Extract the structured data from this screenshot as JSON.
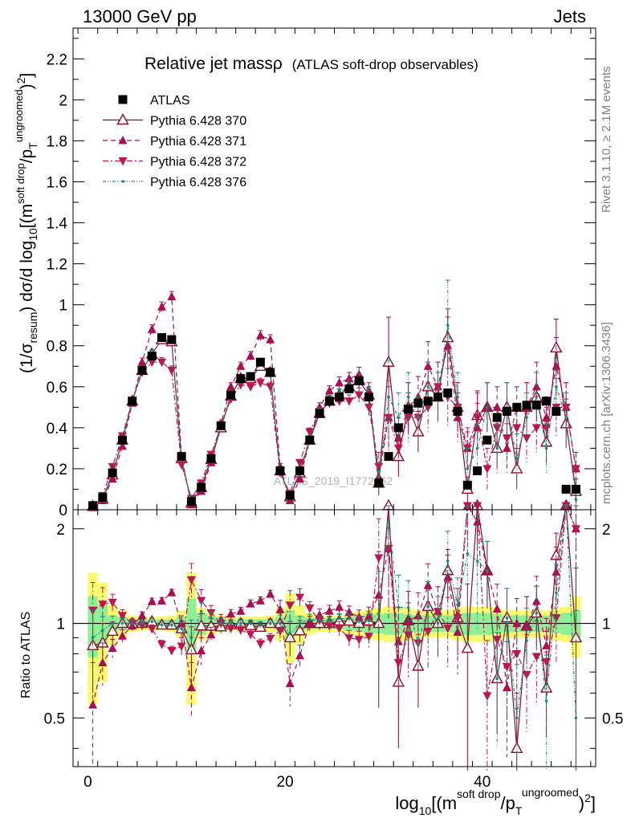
{
  "header": {
    "left": "13000 GeV pp",
    "right": "Jets"
  },
  "side_labels": {
    "rivet": "Rivet 3.1.10, ≥ 2.1M events",
    "mcplots": "mcplots.cern.ch [arXiv:1306.3436]"
  },
  "chart_data": {
    "type": "scatter",
    "title_main": "Relative jet massρ",
    "title_sub": "(ATLAS soft-drop observables)",
    "watermark": "ATLAS_2019_I1772062",
    "ylabel": "(1/σresum) dσ/d log10[(m^soft drop/pT^ungroomed)²]",
    "ylabel_parts": [
      "(1/σ",
      "resum",
      ") dσ/d log",
      "10",
      "[(m",
      "soft drop",
      "/p",
      "T",
      "ungroomed",
      ")",
      "2",
      "]"
    ],
    "xlabel_parts": [
      "log",
      "10",
      "[(m",
      "soft drop",
      "/p",
      "T",
      "ungroomed",
      ")",
      "2",
      "]"
    ],
    "ratio_ylabel": "Ratio to ATLAS",
    "xlim": [
      -1.5,
      51.5
    ],
    "ylim": [
      0,
      2.35
    ],
    "ratio_ylim": [
      0.35,
      2.3
    ],
    "ratio_log": true,
    "x_ticks": [
      0,
      20,
      40
    ],
    "y_ticks": [
      0,
      0.2,
      0.4,
      0.6,
      0.8,
      1,
      1.2,
      1.4,
      1.6,
      1.8,
      2,
      2.2
    ],
    "ratio_ticks": [
      0.5,
      1,
      2
    ],
    "legend_position": "top-left",
    "x": [
      0.5,
      1.5,
      2.5,
      3.5,
      4.5,
      5.5,
      6.5,
      7.5,
      8.5,
      9.5,
      10.5,
      11.5,
      12.5,
      13.5,
      14.5,
      15.5,
      16.5,
      17.5,
      18.5,
      19.5,
      20.5,
      21.5,
      22.5,
      23.5,
      24.5,
      25.5,
      26.5,
      27.5,
      28.5,
      29.5,
      30.5,
      31.5,
      32.5,
      33.5,
      34.5,
      35.5,
      36.5,
      37.5,
      38.5,
      39.5,
      40.5,
      41.5,
      42.5,
      43.5,
      44.5,
      45.5,
      46.5,
      47.5,
      48.5,
      49.5
    ],
    "series": [
      {
        "name": "ATLAS",
        "color": "#000000",
        "marker": "filled-square",
        "line": "none",
        "values": [
          0.02,
          0.06,
          0.18,
          0.34,
          0.53,
          0.68,
          0.75,
          0.84,
          0.83,
          0.26,
          0.04,
          0.11,
          0.25,
          0.41,
          0.56,
          0.64,
          0.65,
          0.72,
          0.67,
          0.19,
          0.07,
          0.19,
          0.34,
          0.47,
          0.53,
          0.55,
          0.59,
          0.63,
          0.55,
          0.13,
          0.26,
          0.4,
          0.49,
          0.52,
          0.53,
          0.55,
          0.57,
          0.48,
          0.12,
          0.19,
          0.34,
          0.45,
          0.48,
          0.5,
          0.51,
          0.51,
          0.53,
          0.48,
          0.1,
          0.1
        ]
      },
      {
        "name": "Pythia 6.428 370",
        "color": "#8b0c28",
        "marker": "open-triangle-up",
        "line": "solid",
        "values": [
          0.017,
          0.052,
          0.17,
          0.34,
          0.53,
          0.68,
          0.76,
          0.83,
          0.82,
          0.25,
          0.033,
          0.108,
          0.245,
          0.4,
          0.555,
          0.64,
          0.64,
          0.7,
          0.67,
          0.19,
          0.063,
          0.18,
          0.34,
          0.47,
          0.53,
          0.56,
          0.6,
          0.63,
          0.56,
          0.13,
          0.72,
          0.26,
          0.5,
          0.38,
          0.6,
          0.55,
          0.84,
          0.5,
          0.1,
          0.46,
          0.5,
          0.3,
          0.5,
          0.2,
          0.5,
          0.55,
          0.33,
          0.79,
          0.42,
          0.09
        ],
        "errors": [
          0.005,
          0.008,
          0.012,
          0.015,
          0.018,
          0.02,
          0.02,
          0.022,
          0.022,
          0.015,
          0.006,
          0.01,
          0.014,
          0.018,
          0.02,
          0.02,
          0.02,
          0.022,
          0.022,
          0.015,
          0.008,
          0.014,
          0.018,
          0.022,
          0.025,
          0.028,
          0.03,
          0.035,
          0.04,
          0.06,
          0.22,
          0.1,
          0.12,
          0.1,
          0.12,
          0.12,
          0.14,
          0.12,
          0.06,
          0.12,
          0.12,
          0.1,
          0.12,
          0.1,
          0.12,
          0.12,
          0.1,
          0.14,
          0.12,
          0.06
        ]
      },
      {
        "name": "Pythia 6.428 371",
        "color": "#a80f52",
        "marker": "filled-triangle-up",
        "line": "dashed",
        "values": [
          0.011,
          0.045,
          0.15,
          0.31,
          0.52,
          0.72,
          0.88,
          0.99,
          1.04,
          0.26,
          0.025,
          0.09,
          0.23,
          0.42,
          0.6,
          0.7,
          0.75,
          0.85,
          0.83,
          0.21,
          0.045,
          0.15,
          0.34,
          0.5,
          0.58,
          0.62,
          0.64,
          0.66,
          0.58,
          0.16,
          0.45,
          0.35,
          0.5,
          0.55,
          0.7,
          0.6,
          0.8,
          0.45,
          0.3,
          0.4,
          0.5,
          0.5,
          0.3,
          0.5,
          0.5,
          0.6,
          0.45,
          0.7,
          0.5,
          0.2
        ],
        "errors": [
          0.004,
          0.007,
          0.01,
          0.014,
          0.018,
          0.02,
          0.022,
          0.024,
          0.025,
          0.015,
          0.005,
          0.009,
          0.013,
          0.018,
          0.02,
          0.02,
          0.022,
          0.024,
          0.024,
          0.015,
          0.007,
          0.012,
          0.018,
          0.022,
          0.025,
          0.028,
          0.03,
          0.035,
          0.04,
          0.06,
          0.15,
          0.1,
          0.12,
          0.1,
          0.12,
          0.12,
          0.14,
          0.12,
          0.08,
          0.12,
          0.12,
          0.1,
          0.12,
          0.1,
          0.12,
          0.12,
          0.1,
          0.14,
          0.12,
          0.08
        ]
      },
      {
        "name": "Pythia 6.428 372",
        "color": "#b8184f",
        "marker": "filled-triangle-down",
        "line": "dashdot",
        "values": [
          0.022,
          0.069,
          0.21,
          0.36,
          0.53,
          0.67,
          0.72,
          0.72,
          0.68,
          0.22,
          0.055,
          0.13,
          0.27,
          0.41,
          0.54,
          0.61,
          0.6,
          0.62,
          0.6,
          0.18,
          0.08,
          0.23,
          0.38,
          0.48,
          0.52,
          0.53,
          0.53,
          0.56,
          0.5,
          0.21,
          0.45,
          0.3,
          0.45,
          0.45,
          0.5,
          0.6,
          0.55,
          0.5,
          0.3,
          0.45,
          0.2,
          0.4,
          0.35,
          0.4,
          0.35,
          0.4,
          0.4,
          0.5,
          0.5,
          0.2
        ],
        "errors": [
          0.005,
          0.009,
          0.013,
          0.016,
          0.018,
          0.02,
          0.021,
          0.022,
          0.022,
          0.014,
          0.007,
          0.011,
          0.015,
          0.018,
          0.02,
          0.02,
          0.021,
          0.022,
          0.022,
          0.014,
          0.009,
          0.015,
          0.019,
          0.022,
          0.025,
          0.028,
          0.03,
          0.035,
          0.04,
          0.07,
          0.18,
          0.1,
          0.12,
          0.1,
          0.12,
          0.12,
          0.14,
          0.12,
          0.1,
          0.12,
          0.1,
          0.1,
          0.12,
          0.1,
          0.12,
          0.12,
          0.1,
          0.14,
          0.12,
          0.08
        ]
      },
      {
        "name": "Pythia 6.428 376",
        "color": "#1b8a72",
        "marker": "small-dot",
        "line": "dashdotdot",
        "values": [
          0.018,
          0.057,
          0.18,
          0.34,
          0.53,
          0.68,
          0.76,
          0.83,
          0.82,
          0.25,
          0.036,
          0.12,
          0.26,
          0.41,
          0.56,
          0.64,
          0.65,
          0.71,
          0.67,
          0.19,
          0.065,
          0.19,
          0.35,
          0.48,
          0.54,
          0.57,
          0.61,
          0.64,
          0.56,
          0.14,
          0.55,
          0.45,
          0.55,
          0.45,
          0.6,
          0.55,
          0.9,
          0.55,
          0.2,
          0.3,
          0.5,
          0.3,
          0.5,
          0.25,
          0.45,
          0.55,
          0.3,
          0.6,
          0.45,
          0.05
        ],
        "errors": [
          0.004,
          0.006,
          0.01,
          0.012,
          0.015,
          0.016,
          0.017,
          0.018,
          0.018,
          0.012,
          0.005,
          0.008,
          0.011,
          0.014,
          0.016,
          0.016,
          0.017,
          0.018,
          0.018,
          0.012,
          0.006,
          0.01,
          0.014,
          0.016,
          0.018,
          0.02,
          0.022,
          0.025,
          0.03,
          0.05,
          0.18,
          0.12,
          0.12,
          0.1,
          0.12,
          0.12,
          0.22,
          0.12,
          0.1,
          0.12,
          0.12,
          0.12,
          0.12,
          0.12,
          0.12,
          0.12,
          0.12,
          0.14,
          0.12,
          0.06
        ]
      }
    ],
    "ratio_band_stat": [
      0.22,
      0.15,
      0.06,
      0.05,
      0.03,
      0.03,
      0.03,
      0.03,
      0.03,
      0.05,
      0.2,
      0.08,
      0.05,
      0.04,
      0.03,
      0.03,
      0.03,
      0.03,
      0.03,
      0.05,
      0.1,
      0.06,
      0.04,
      0.04,
      0.04,
      0.04,
      0.05,
      0.06,
      0.07,
      0.07,
      0.08,
      0.08,
      0.07,
      0.06,
      0.06,
      0.06,
      0.06,
      0.07,
      0.08,
      0.08,
      0.08,
      0.07,
      0.06,
      0.06,
      0.06,
      0.06,
      0.06,
      0.07,
      0.08,
      0.1
    ],
    "ratio_band_total": [
      0.45,
      0.35,
      0.15,
      0.1,
      0.06,
      0.05,
      0.05,
      0.05,
      0.06,
      0.1,
      0.45,
      0.12,
      0.08,
      0.06,
      0.05,
      0.05,
      0.05,
      0.05,
      0.06,
      0.12,
      0.25,
      0.14,
      0.08,
      0.06,
      0.06,
      0.06,
      0.08,
      0.09,
      0.11,
      0.12,
      0.13,
      0.13,
      0.12,
      0.1,
      0.1,
      0.1,
      0.1,
      0.12,
      0.13,
      0.13,
      0.13,
      0.12,
      0.1,
      0.1,
      0.1,
      0.1,
      0.1,
      0.12,
      0.13,
      0.22
    ]
  }
}
